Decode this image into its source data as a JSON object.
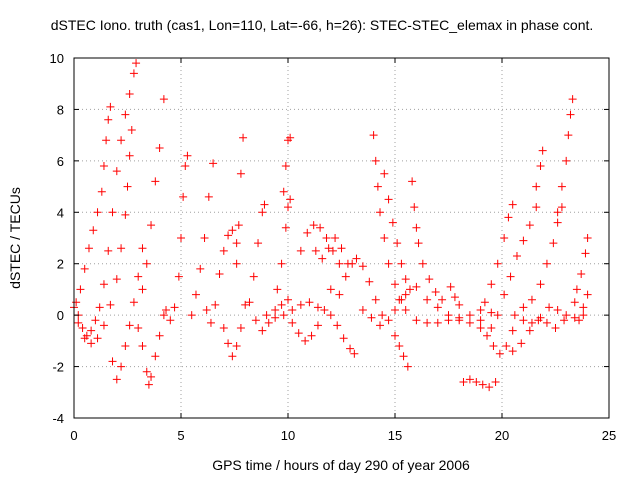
{
  "chart_data": {
    "type": "scatter",
    "title": "dSTEC Iono. truth (cas1, Lon=110, Lat=-66, h=26): STEC-STEC_elemax in phase cont.",
    "xlabel": "GPS time / hours of day 290 of year 2006",
    "ylabel": "dSTEC  / TECUs",
    "xlim": [
      0,
      25
    ],
    "ylim": [
      -4,
      10
    ],
    "xticks": [
      0,
      5,
      10,
      15,
      20,
      25
    ],
    "yticks": [
      -4,
      -2,
      0,
      2,
      4,
      6,
      8,
      10
    ],
    "grid": true,
    "marker": "+",
    "color": "#ff0000",
    "series": [
      {
        "points": [
          [
            0.0,
            0.3
          ],
          [
            0.2,
            0.0
          ],
          [
            0.4,
            -0.5
          ],
          [
            0.6,
            -0.8
          ],
          [
            0.8,
            -0.6
          ],
          [
            1.0,
            -0.2
          ],
          [
            1.2,
            0.3
          ],
          [
            1.4,
            1.2
          ],
          [
            1.6,
            2.5
          ],
          [
            1.8,
            4.0
          ],
          [
            2.0,
            5.6
          ],
          [
            2.2,
            6.8
          ],
          [
            2.4,
            7.8
          ],
          [
            2.6,
            8.6
          ],
          [
            2.8,
            9.4
          ],
          [
            2.9,
            9.8
          ],
          [
            0.1,
            0.5
          ],
          [
            0.3,
            1.0
          ],
          [
            0.5,
            1.8
          ],
          [
            0.7,
            2.6
          ],
          [
            0.9,
            3.3
          ],
          [
            1.1,
            4.0
          ],
          [
            1.3,
            4.8
          ],
          [
            1.4,
            5.8
          ],
          [
            1.5,
            6.8
          ],
          [
            1.6,
            7.6
          ],
          [
            1.7,
            8.1
          ],
          [
            0.2,
            -0.3
          ],
          [
            0.5,
            -0.9
          ],
          [
            0.8,
            -1.1
          ],
          [
            1.1,
            -0.9
          ],
          [
            1.4,
            -0.4
          ],
          [
            1.7,
            0.4
          ],
          [
            2.0,
            1.4
          ],
          [
            2.2,
            2.6
          ],
          [
            2.4,
            3.9
          ],
          [
            2.5,
            5.0
          ],
          [
            2.6,
            6.2
          ],
          [
            2.7,
            7.2
          ],
          [
            1.8,
            -1.8
          ],
          [
            2.0,
            -2.5
          ],
          [
            2.2,
            -2.0
          ],
          [
            2.4,
            -1.2
          ],
          [
            2.6,
            -0.4
          ],
          [
            2.8,
            0.5
          ],
          [
            3.0,
            1.5
          ],
          [
            3.2,
            2.6
          ],
          [
            3.0,
            -0.5
          ],
          [
            3.2,
            -1.2
          ],
          [
            3.4,
            -2.2
          ],
          [
            3.5,
            -2.7
          ],
          [
            3.6,
            -2.4
          ],
          [
            3.8,
            -1.6
          ],
          [
            4.0,
            -0.8
          ],
          [
            4.2,
            0.0
          ],
          [
            3.2,
            1.0
          ],
          [
            3.4,
            2.0
          ],
          [
            3.6,
            3.5
          ],
          [
            3.8,
            5.2
          ],
          [
            4.0,
            6.5
          ],
          [
            4.2,
            8.4
          ],
          [
            4.3,
            0.2
          ],
          [
            4.5,
            -0.2
          ],
          [
            4.7,
            0.3
          ],
          [
            4.9,
            1.5
          ],
          [
            5.0,
            3.0
          ],
          [
            5.1,
            4.6
          ],
          [
            5.2,
            5.8
          ],
          [
            5.3,
            6.2
          ],
          [
            5.5,
            0.0
          ],
          [
            5.7,
            0.8
          ],
          [
            5.9,
            1.8
          ],
          [
            6.1,
            3.0
          ],
          [
            6.3,
            4.6
          ],
          [
            6.5,
            5.9
          ],
          [
            6.2,
            0.2
          ],
          [
            6.4,
            -0.3
          ],
          [
            6.6,
            0.4
          ],
          [
            6.8,
            1.6
          ],
          [
            7.0,
            2.5
          ],
          [
            7.2,
            3.1
          ],
          [
            7.4,
            3.3
          ],
          [
            7.6,
            2.8
          ],
          [
            7.0,
            -0.5
          ],
          [
            7.2,
            -1.1
          ],
          [
            7.4,
            -1.6
          ],
          [
            7.6,
            -1.2
          ],
          [
            7.8,
            -0.5
          ],
          [
            8.0,
            0.4
          ],
          [
            7.6,
            2.0
          ],
          [
            7.7,
            3.5
          ],
          [
            7.8,
            5.5
          ],
          [
            7.9,
            6.9
          ],
          [
            8.2,
            0.5
          ],
          [
            8.4,
            1.5
          ],
          [
            8.6,
            2.8
          ],
          [
            8.8,
            4.0
          ],
          [
            8.9,
            4.3
          ],
          [
            8.5,
            -0.2
          ],
          [
            8.8,
            -0.6
          ],
          [
            9.1,
            -0.3
          ],
          [
            9.4,
            0.2
          ],
          [
            9.7,
            0.4
          ],
          [
            10.0,
            0.6
          ],
          [
            9.5,
            1.0
          ],
          [
            9.7,
            2.0
          ],
          [
            9.9,
            3.4
          ],
          [
            10.0,
            4.2
          ],
          [
            10.1,
            4.5
          ],
          [
            9.8,
            4.8
          ],
          [
            9.9,
            5.8
          ],
          [
            10.0,
            6.8
          ],
          [
            10.1,
            6.9
          ],
          [
            9.0,
            0.0
          ],
          [
            9.4,
            -0.1
          ],
          [
            9.8,
            0.0
          ],
          [
            10.2,
            0.2
          ],
          [
            10.6,
            0.4
          ],
          [
            11.0,
            0.5
          ],
          [
            11.4,
            0.3
          ],
          [
            10.2,
            -0.3
          ],
          [
            10.5,
            -0.7
          ],
          [
            10.8,
            -1.0
          ],
          [
            11.1,
            -0.8
          ],
          [
            11.4,
            -0.4
          ],
          [
            11.7,
            0.2
          ],
          [
            12.0,
            1.0
          ],
          [
            10.6,
            2.5
          ],
          [
            10.9,
            3.2
          ],
          [
            11.2,
            3.5
          ],
          [
            11.5,
            3.4
          ],
          [
            11.8,
            3.0
          ],
          [
            12.1,
            2.5
          ],
          [
            12.4,
            2.0
          ],
          [
            11.3,
            2.5
          ],
          [
            11.6,
            2.2
          ],
          [
            11.9,
            2.6
          ],
          [
            12.2,
            3.0
          ],
          [
            12.5,
            2.6
          ],
          [
            12.8,
            2.0
          ],
          [
            12.0,
            0.0
          ],
          [
            12.3,
            -0.4
          ],
          [
            12.6,
            -0.9
          ],
          [
            12.9,
            -1.3
          ],
          [
            13.1,
            -1.5
          ],
          [
            12.4,
            0.8
          ],
          [
            12.7,
            1.5
          ],
          [
            13.0,
            2.0
          ],
          [
            13.2,
            2.2
          ],
          [
            13.5,
            1.9
          ],
          [
            13.8,
            1.3
          ],
          [
            14.1,
            0.6
          ],
          [
            14.4,
            0.0
          ],
          [
            13.5,
            0.2
          ],
          [
            13.9,
            -0.1
          ],
          [
            14.3,
            -0.4
          ],
          [
            14.7,
            -0.2
          ],
          [
            15.0,
            0.2
          ],
          [
            15.3,
            0.6
          ],
          [
            15.5,
            0.8
          ],
          [
            14.0,
            7.0
          ],
          [
            14.1,
            6.0
          ],
          [
            14.2,
            5.0
          ],
          [
            14.3,
            4.0
          ],
          [
            14.5,
            3.0
          ],
          [
            14.7,
            2.0
          ],
          [
            15.0,
            1.2
          ],
          [
            15.2,
            0.6
          ],
          [
            14.5,
            5.5
          ],
          [
            14.7,
            4.5
          ],
          [
            14.9,
            3.6
          ],
          [
            15.1,
            2.8
          ],
          [
            15.3,
            2.0
          ],
          [
            15.5,
            1.4
          ],
          [
            15.7,
            1.0
          ],
          [
            16.0,
            1.1
          ],
          [
            15.8,
            5.2
          ],
          [
            15.9,
            4.2
          ],
          [
            16.0,
            3.4
          ],
          [
            16.1,
            2.8
          ],
          [
            16.3,
            2.0
          ],
          [
            16.6,
            1.4
          ],
          [
            16.9,
            0.9
          ],
          [
            17.2,
            0.6
          ],
          [
            15.0,
            -0.8
          ],
          [
            15.2,
            -1.2
          ],
          [
            15.4,
            -1.6
          ],
          [
            15.6,
            -2.0
          ],
          [
            15.5,
            0.2
          ],
          [
            16.0,
            -0.2
          ],
          [
            16.5,
            -0.3
          ],
          [
            17.0,
            -0.3
          ],
          [
            17.5,
            -0.2
          ],
          [
            18.0,
            -0.2
          ],
          [
            18.5,
            -0.3
          ],
          [
            19.0,
            -0.2
          ],
          [
            16.5,
            0.6
          ],
          [
            17.0,
            0.3
          ],
          [
            17.5,
            0.0
          ],
          [
            18.0,
            -0.1
          ],
          [
            18.5,
            0.0
          ],
          [
            19.0,
            0.2
          ],
          [
            19.5,
            0.1
          ],
          [
            17.6,
            1.1
          ],
          [
            17.8,
            0.7
          ],
          [
            18.0,
            0.4
          ],
          [
            18.2,
            -2.6
          ],
          [
            18.5,
            -2.5
          ],
          [
            18.8,
            -2.6
          ],
          [
            19.1,
            -2.7
          ],
          [
            19.4,
            -2.8
          ],
          [
            19.7,
            -2.6
          ],
          [
            19.0,
            -0.5
          ],
          [
            19.3,
            -0.8
          ],
          [
            19.6,
            -1.2
          ],
          [
            19.9,
            -1.5
          ],
          [
            20.2,
            -1.2
          ],
          [
            20.5,
            -0.6
          ],
          [
            19.2,
            0.5
          ],
          [
            19.5,
            1.2
          ],
          [
            19.8,
            2.0
          ],
          [
            20.1,
            3.0
          ],
          [
            20.3,
            3.8
          ],
          [
            20.5,
            4.3
          ],
          [
            19.5,
            -0.5
          ],
          [
            19.8,
            0.0
          ],
          [
            20.1,
            0.8
          ],
          [
            20.4,
            1.5
          ],
          [
            20.7,
            2.3
          ],
          [
            21.0,
            2.9
          ],
          [
            21.3,
            3.5
          ],
          [
            21.6,
            4.2
          ],
          [
            20.6,
            0.0
          ],
          [
            21.0,
            0.3
          ],
          [
            21.4,
            0.6
          ],
          [
            21.8,
            1.2
          ],
          [
            22.1,
            2.0
          ],
          [
            22.4,
            2.8
          ],
          [
            22.6,
            3.6
          ],
          [
            22.8,
            4.2
          ],
          [
            21.6,
            5.0
          ],
          [
            21.8,
            5.8
          ],
          [
            21.9,
            6.4
          ],
          [
            20.5,
            -1.4
          ],
          [
            20.9,
            -1.1
          ],
          [
            21.3,
            -0.6
          ],
          [
            21.7,
            -0.2
          ],
          [
            22.1,
            -0.3
          ],
          [
            22.5,
            -0.5
          ],
          [
            22.9,
            -0.2
          ],
          [
            21.0,
            -0.2
          ],
          [
            21.4,
            -0.3
          ],
          [
            21.8,
            -0.1
          ],
          [
            22.2,
            0.3
          ],
          [
            22.6,
            0.2
          ],
          [
            23.0,
            0.0
          ],
          [
            23.4,
            -0.1
          ],
          [
            23.8,
            0.0
          ],
          [
            22.6,
            4.0
          ],
          [
            22.8,
            5.0
          ],
          [
            23.0,
            6.0
          ],
          [
            23.1,
            7.0
          ],
          [
            23.2,
            7.8
          ],
          [
            23.3,
            8.4
          ],
          [
            23.5,
            1.0
          ],
          [
            23.7,
            1.6
          ],
          [
            23.9,
            2.4
          ],
          [
            24.0,
            3.0
          ],
          [
            23.4,
            0.5
          ],
          [
            23.6,
            -0.2
          ],
          [
            23.8,
            0.3
          ],
          [
            24.0,
            0.8
          ]
        ]
      }
    ]
  }
}
